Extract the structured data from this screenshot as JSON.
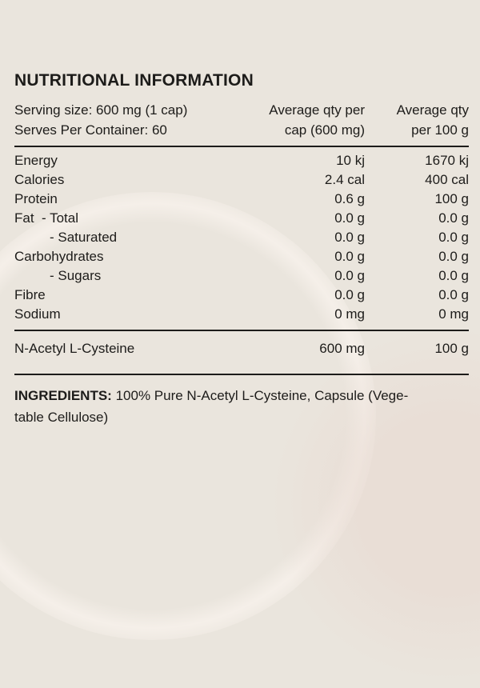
{
  "colors": {
    "background": "#EAE5DD",
    "text": "#1D1C1A",
    "rule": "#1D1C1A",
    "watermark_highlight": "#F7F1EB",
    "watermark_shadow": "#E8D9D1"
  },
  "label": {
    "title": "NUTRITIONAL INFORMATION",
    "serving_size": "Serving size: 600 mg (1 cap)",
    "serves_per_container": "Serves Per Container: 60",
    "columns": {
      "per_cap": {
        "line1": "Average qty per",
        "line2": "cap (600 mg)"
      },
      "per_100g": {
        "line1": "Average qty",
        "line2": "per 100 g"
      }
    },
    "rows": [
      {
        "name": "Energy",
        "per_cap": "10 kj",
        "per_100g": "1670 kj"
      },
      {
        "name": "Calories",
        "per_cap": "2.4 cal",
        "per_100g": "400 cal"
      },
      {
        "name": "Protein",
        "per_cap": "0.6 g",
        "per_100g": "100 g"
      },
      {
        "name": "Fat  - Total",
        "per_cap": "0.0 g",
        "per_100g": "0.0 g"
      },
      {
        "name": "- Saturated",
        "per_cap": "0.0 g",
        "per_100g": "0.0 g"
      },
      {
        "name": "Carbohydrates",
        "per_cap": "0.0 g",
        "per_100g": "0.0 g"
      },
      {
        "name": "- Sugars",
        "per_cap": "0.0 g",
        "per_100g": "0.0 g"
      },
      {
        "name": "Fibre",
        "per_cap": "0.0 g",
        "per_100g": "0.0 g"
      },
      {
        "name": "Sodium",
        "per_cap": "0 mg",
        "per_100g": "0 mg"
      }
    ],
    "active_ingredient_row": {
      "name": "N-Acetyl L-Cysteine",
      "per_cap": "600 mg",
      "per_100g": "100 g"
    },
    "ingredients": {
      "label": "INGREDIENTS:",
      "line1": "100% Pure N-Acetyl L-Cysteine, Capsule (Vege-",
      "line2": "table Cellulose)"
    }
  }
}
